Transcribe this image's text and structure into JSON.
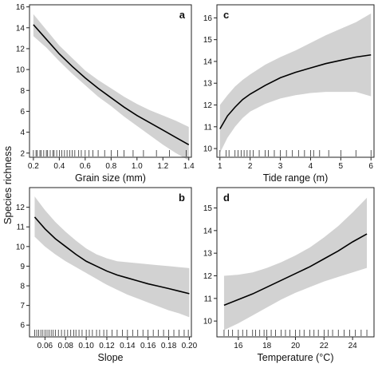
{
  "figure": {
    "ylabel": "Species richness"
  },
  "chart_data": [
    {
      "id": "a",
      "type": "line",
      "letter": "a",
      "xlabel": "Grain size (mm)",
      "xlim": [
        0.17,
        1.42
      ],
      "ylim": [
        1.6,
        16.2
      ],
      "xticks": [
        0.2,
        0.4,
        0.6,
        0.8,
        1.0,
        1.2,
        1.4
      ],
      "xtick_labels": [
        "0.2",
        "0.4",
        "0.6",
        "0.8",
        "1.0",
        "1.2",
        "1.4"
      ],
      "yticks": [
        2,
        4,
        6,
        8,
        10,
        12,
        14,
        16
      ],
      "ytick_labels": [
        "2",
        "4",
        "6",
        "8",
        "10",
        "12",
        "14",
        "16"
      ],
      "x": [
        0.2,
        0.3,
        0.4,
        0.5,
        0.6,
        0.7,
        0.8,
        0.9,
        1.0,
        1.1,
        1.2,
        1.3,
        1.4
      ],
      "y": [
        14.3,
        12.9,
        11.5,
        10.3,
        9.2,
        8.2,
        7.3,
        6.4,
        5.6,
        4.9,
        4.2,
        3.5,
        2.8
      ],
      "ci_lower": [
        13.2,
        12.1,
        10.8,
        9.6,
        8.5,
        7.4,
        6.5,
        5.5,
        4.6,
        3.7,
        2.8,
        2.0,
        1.3
      ],
      "ci_upper": [
        15.3,
        13.8,
        12.3,
        11.1,
        9.9,
        9.0,
        8.2,
        7.4,
        6.7,
        6.1,
        5.6,
        5.1,
        4.5
      ],
      "rug": [
        0.2,
        0.22,
        0.23,
        0.25,
        0.26,
        0.28,
        0.3,
        0.31,
        0.33,
        0.35,
        0.36,
        0.38,
        0.4,
        0.42,
        0.44,
        0.46,
        0.48,
        0.5,
        0.52,
        0.55,
        0.57,
        0.6,
        0.63,
        0.66,
        0.7,
        0.75,
        0.8,
        0.85,
        0.9,
        0.97,
        1.05,
        1.15,
        1.25,
        1.38
      ]
    },
    {
      "id": "b",
      "type": "line",
      "letter": "b",
      "xlabel": "Slope",
      "xlim": [
        0.045,
        0.202
      ],
      "ylim": [
        5.4,
        13.0
      ],
      "xticks": [
        0.06,
        0.08,
        0.1,
        0.12,
        0.14,
        0.16,
        0.18,
        0.2
      ],
      "xtick_labels": [
        "0.06",
        "0.08",
        "0.10",
        "0.12",
        "0.14",
        "0.16",
        "0.18",
        "0.20"
      ],
      "yticks": [
        6,
        7,
        8,
        9,
        10,
        11,
        12
      ],
      "ytick_labels": [
        "6",
        "7",
        "8",
        "9",
        "10",
        "11",
        "12"
      ],
      "x": [
        0.05,
        0.06,
        0.07,
        0.08,
        0.09,
        0.1,
        0.11,
        0.12,
        0.13,
        0.14,
        0.15,
        0.16,
        0.17,
        0.18,
        0.19,
        0.2
      ],
      "y": [
        11.5,
        10.9,
        10.4,
        10.0,
        9.6,
        9.25,
        9.0,
        8.75,
        8.55,
        8.4,
        8.25,
        8.1,
        7.98,
        7.86,
        7.73,
        7.6
      ],
      "ci_lower": [
        10.5,
        10.0,
        9.6,
        9.25,
        8.95,
        8.65,
        8.35,
        8.05,
        7.8,
        7.55,
        7.35,
        7.15,
        6.95,
        6.75,
        6.6,
        6.4
      ],
      "ci_upper": [
        12.55,
        11.85,
        11.25,
        10.75,
        10.3,
        9.9,
        9.6,
        9.4,
        9.25,
        9.2,
        9.15,
        9.1,
        9.05,
        9.0,
        8.95,
        8.9
      ],
      "rug": [
        0.05,
        0.052,
        0.054,
        0.056,
        0.058,
        0.06,
        0.062,
        0.064,
        0.066,
        0.068,
        0.07,
        0.073,
        0.076,
        0.079,
        0.082,
        0.085,
        0.088,
        0.09,
        0.093,
        0.096,
        0.1,
        0.103,
        0.106,
        0.11,
        0.113,
        0.117,
        0.12,
        0.125,
        0.13,
        0.135,
        0.14,
        0.145,
        0.15,
        0.155,
        0.16,
        0.165,
        0.17,
        0.175,
        0.18,
        0.185,
        0.19,
        0.195,
        0.199
      ]
    },
    {
      "id": "c",
      "type": "line",
      "letter": "c",
      "xlabel": "Tide range (m)",
      "xlim": [
        0.9,
        6.1
      ],
      "ylim": [
        9.6,
        16.6
      ],
      "xticks": [
        1,
        2,
        3,
        4,
        5,
        6
      ],
      "xtick_labels": [
        "1",
        "2",
        "3",
        "4",
        "5",
        "6"
      ],
      "yticks": [
        10,
        11,
        12,
        13,
        14,
        15,
        16
      ],
      "ytick_labels": [
        "10",
        "11",
        "12",
        "13",
        "14",
        "15",
        "16"
      ],
      "x": [
        1.0,
        1.25,
        1.5,
        1.75,
        2.0,
        2.5,
        3.0,
        3.5,
        4.0,
        4.5,
        5.0,
        5.5,
        6.0
      ],
      "y": [
        10.9,
        11.5,
        11.9,
        12.25,
        12.5,
        12.9,
        13.25,
        13.5,
        13.7,
        13.9,
        14.05,
        14.2,
        14.3
      ],
      "ci_lower": [
        9.8,
        10.5,
        11.0,
        11.4,
        11.7,
        12.05,
        12.3,
        12.45,
        12.55,
        12.6,
        12.6,
        12.6,
        12.4
      ],
      "ci_upper": [
        12.0,
        12.45,
        12.85,
        13.15,
        13.4,
        13.85,
        14.2,
        14.5,
        14.85,
        15.2,
        15.5,
        15.8,
        16.2
      ],
      "rug": [
        1.0,
        1.2,
        1.3,
        1.5,
        1.6,
        1.7,
        1.8,
        1.9,
        2.0,
        2.1,
        2.3,
        2.5,
        2.6,
        2.8,
        3.0,
        3.2,
        3.4,
        3.6,
        3.8,
        4.0,
        4.1,
        4.3,
        4.6,
        5.0,
        5.5,
        6.0
      ]
    },
    {
      "id": "d",
      "type": "line",
      "letter": "d",
      "xlabel": "Temperature (°C)",
      "xlim": [
        14.5,
        25.5
      ],
      "ylim": [
        9.3,
        15.9
      ],
      "xticks": [
        16,
        18,
        20,
        22,
        24
      ],
      "xtick_labels": [
        "16",
        "18",
        "20",
        "22",
        "24"
      ],
      "yticks": [
        10,
        11,
        12,
        13,
        14,
        15
      ],
      "ytick_labels": [
        "10",
        "11",
        "12",
        "13",
        "14",
        "15"
      ],
      "x": [
        15,
        16,
        17,
        18,
        19,
        20,
        21,
        22,
        23,
        24,
        25
      ],
      "y": [
        10.7,
        10.95,
        11.2,
        11.5,
        11.8,
        12.1,
        12.4,
        12.75,
        13.1,
        13.5,
        13.85
      ],
      "ci_lower": [
        9.6,
        9.9,
        10.25,
        10.6,
        10.95,
        11.25,
        11.5,
        11.75,
        11.95,
        12.15,
        12.35
      ],
      "ci_upper": [
        12.0,
        12.05,
        12.15,
        12.35,
        12.6,
        12.9,
        13.25,
        13.7,
        14.2,
        14.8,
        15.45
      ],
      "rug": [
        15.0,
        15.3,
        15.6,
        16.0,
        16.3,
        16.6,
        17.0,
        17.2,
        17.5,
        17.8,
        18.0,
        18.3,
        18.6,
        19.0,
        19.3,
        19.6,
        20.0,
        20.3,
        20.6,
        21.0,
        21.3,
        21.6,
        22.0,
        22.3,
        22.6,
        23.0,
        23.4,
        23.8,
        24.2,
        24.6,
        25.0
      ]
    }
  ],
  "colors": {
    "ci_band": "#d2d2d2",
    "line": "#000000",
    "axis": "#222222"
  }
}
